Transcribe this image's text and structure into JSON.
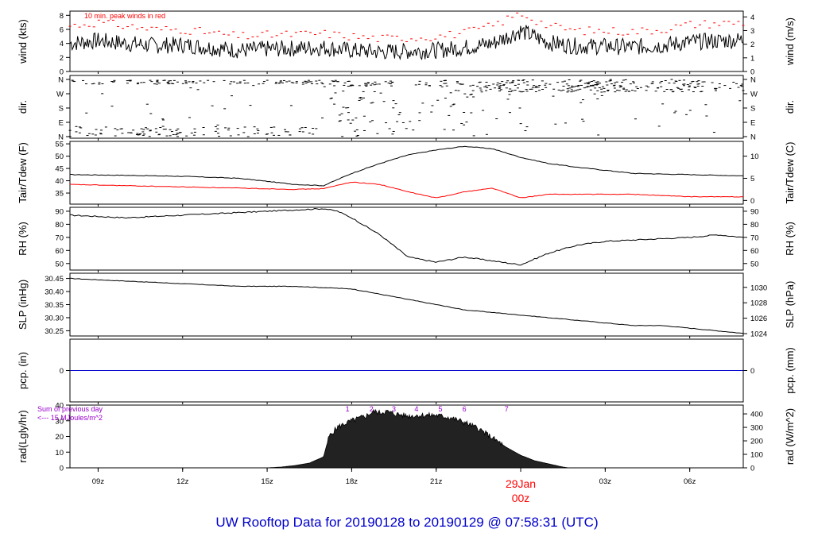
{
  "footer": "UW Rooftop Data for 20190128  to  20190129 @ 07:58:31  (UTC)",
  "colors": {
    "line": "#000000",
    "peak": "#ff0000",
    "dew": "#ff0000",
    "precip": "#0000cc",
    "annot": "#9900cc",
    "footer": "#0000cc",
    "date": "#ff0000"
  },
  "chart_data": [
    {
      "id": "wind",
      "type": "line",
      "ylabel_left": "wind (kts)",
      "ylabel_right": "wind (m/s)",
      "ylim": [
        0,
        8.6
      ],
      "yticks_left": [
        0,
        2,
        4,
        6,
        8
      ],
      "yticks_right": [
        {
          "label": "0",
          "value": 0
        },
        {
          "label": "1",
          "value": 1.944
        },
        {
          "label": "2",
          "value": 3.888
        },
        {
          "label": "3",
          "value": 5.832
        },
        {
          "label": "4",
          "value": 7.776
        }
      ],
      "annotation": "10 min. peak winds in red",
      "x": [
        8,
        9,
        10,
        11,
        12,
        13,
        14,
        15,
        16,
        17,
        18,
        19,
        20,
        21,
        22,
        23,
        24,
        25,
        26,
        27,
        28,
        29,
        30,
        31.9
      ],
      "series": [
        {
          "values": [
            4.0,
            4.4,
            4.0,
            3.7,
            3.8,
            3.4,
            3.0,
            3.2,
            3.3,
            3.4,
            3.0,
            2.8,
            2.9,
            3.0,
            3.4,
            4.0,
            5.8,
            4.1,
            3.6,
            3.6,
            3.5,
            3.7,
            4.2,
            4.5
          ]
        },
        {
          "values": [
            6.5,
            7.0,
            6.5,
            6.0,
            6.0,
            5.5,
            5.0,
            5.2,
            5.3,
            5.4,
            5.0,
            4.7,
            4.8,
            5.0,
            5.5,
            6.5,
            8.3,
            6.5,
            5.8,
            5.8,
            5.7,
            6.0,
            6.7,
            7.0
          ]
        }
      ]
    },
    {
      "id": "dir",
      "type": "scatter",
      "ylabel_left": "dir.",
      "ylabel_right": "dir.",
      "yticks": [
        "N",
        "W",
        "S",
        "E",
        "N"
      ]
    },
    {
      "id": "temp",
      "type": "line",
      "ylabel_left": "Tair/Tdew (F)",
      "ylabel_right": "Tair/Tdew (C)",
      "ylim": [
        30.5,
        56
      ],
      "yticks_left": [
        35,
        40,
        45,
        50,
        55
      ],
      "yticks_right": [
        {
          "label": "0",
          "value": 32
        },
        {
          "label": "5",
          "value": 41
        },
        {
          "label": "10",
          "value": 50
        }
      ],
      "x": [
        8,
        10,
        12,
        14,
        16,
        17,
        18,
        19,
        20,
        21,
        22,
        23,
        24,
        25,
        26,
        28,
        30,
        31.9
      ],
      "series": [
        {
          "values": [
            42.5,
            42.2,
            41.8,
            41.0,
            38.5,
            38.0,
            43.0,
            47.0,
            50.5,
            52.5,
            54.0,
            53.0,
            49.5,
            47.0,
            45.5,
            43.0,
            42.5,
            42.0
          ]
        },
        {
          "values": [
            38.5,
            38.0,
            37.5,
            37.0,
            36.5,
            36.8,
            39.5,
            38.5,
            35.5,
            33.0,
            35.5,
            37.0,
            33.0,
            34.5,
            34.5,
            34.5,
            33.5,
            33.5
          ]
        }
      ]
    },
    {
      "id": "rh",
      "type": "line",
      "ylabel_left": "RH (%)",
      "ylabel_right": "RH (%)",
      "ylim": [
        45,
        93
      ],
      "yticks_left": [
        50,
        60,
        70,
        80,
        90
      ],
      "yticks_right": [
        50,
        60,
        70,
        80,
        90
      ],
      "x": [
        8,
        10,
        12,
        14,
        16,
        17,
        17.5,
        18,
        19,
        20,
        21,
        22,
        23,
        24,
        25,
        26,
        27,
        28,
        29,
        30,
        31,
        31.9
      ],
      "series": [
        {
          "values": [
            87,
            85,
            87,
            89,
            91,
            92,
            90,
            85,
            72,
            55,
            51,
            55,
            52,
            49,
            58,
            64,
            67,
            68,
            69,
            70,
            72,
            70
          ]
        }
      ]
    },
    {
      "id": "slp",
      "type": "line",
      "ylabel_left": "SLP (inHg)",
      "ylabel_right": "SLP (hPa)",
      "ylim": [
        30.23,
        30.47
      ],
      "yticks_left": [
        "30.25",
        "30.30",
        "30.35",
        "30.40",
        "30.45"
      ],
      "yticks_right": [
        {
          "label": "1024",
          "value": 30.239
        },
        {
          "label": "1026",
          "value": 30.298
        },
        {
          "label": "1028",
          "value": 30.357
        },
        {
          "label": "1030",
          "value": 30.416
        }
      ],
      "x": [
        8,
        10,
        12,
        14,
        16,
        18,
        19,
        20,
        21,
        22,
        23,
        24,
        25,
        26,
        27,
        28,
        29,
        30,
        31.9
      ],
      "series": [
        {
          "values": [
            30.45,
            30.44,
            30.43,
            30.42,
            30.42,
            30.41,
            30.39,
            30.37,
            30.35,
            30.33,
            30.32,
            30.31,
            30.3,
            30.29,
            30.28,
            30.27,
            30.27,
            30.26,
            30.24
          ]
        }
      ]
    },
    {
      "id": "pcp",
      "type": "line",
      "ylabel_left": "pcp. (in)",
      "ylabel_right": "pcp. (mm)",
      "ylim": [
        -0.5,
        0.5
      ],
      "yticks_left": [
        0
      ],
      "yticks_right": [
        {
          "label": "0",
          "value": 0
        }
      ],
      "x": [
        8,
        31.9
      ],
      "series": [
        {
          "values": [
            0,
            0
          ]
        }
      ]
    },
    {
      "id": "rad",
      "type": "area",
      "ylabel_left": "rad(Lgly/hr)",
      "ylabel_right": "rad (W/m^2)",
      "ylim": [
        0,
        40
      ],
      "yticks_left": [
        0,
        10,
        20,
        30,
        40
      ],
      "yticks_right": [
        {
          "label": "0",
          "value": 0
        },
        {
          "label": "100",
          "value": 8.6
        },
        {
          "label": "200",
          "value": 17.2
        },
        {
          "label": "300",
          "value": 25.8
        },
        {
          "label": "400",
          "value": 34.4
        }
      ],
      "annotation_lines": [
        "Sum of previous day",
        "<--- 15 MJoules/m^2"
      ],
      "marks": [
        {
          "label": "1",
          "x": 17.85
        },
        {
          "label": "2",
          "x": 18.7
        },
        {
          "label": "3",
          "x": 19.5
        },
        {
          "label": "4",
          "x": 20.3
        },
        {
          "label": "5",
          "x": 21.15
        },
        {
          "label": "6",
          "x": 22.0
        },
        {
          "label": "7",
          "x": 23.5
        }
      ],
      "x": [
        15.0,
        15.5,
        16.0,
        16.5,
        17.0,
        17.2,
        17.5,
        18.0,
        18.5,
        18.8,
        19.0,
        19.2,
        19.5,
        20.0,
        20.5,
        21.0,
        21.5,
        22.0,
        22.5,
        23.0,
        23.5,
        24.0,
        24.5,
        25.0,
        25.5,
        25.7
      ],
      "values": [
        0,
        0.5,
        1.5,
        3.0,
        7.0,
        20.0,
        26.0,
        30.0,
        33.0,
        36.0,
        35.0,
        36.0,
        34.5,
        33.0,
        33.5,
        33.5,
        32.0,
        29.0,
        25.0,
        19.0,
        13.0,
        8.0,
        4.5,
        2.5,
        0.5,
        0
      ]
    }
  ],
  "xaxis": {
    "range": [
      8,
      31.9
    ],
    "ticks": [
      {
        "label": "09z",
        "value": 9
      },
      {
        "label": "12z",
        "value": 12
      },
      {
        "label": "15z",
        "value": 15
      },
      {
        "label": "18z",
        "value": 18
      },
      {
        "label": "21z",
        "value": 21
      },
      {
        "label": "03z",
        "value": 27
      },
      {
        "label": "06z",
        "value": 30
      }
    ],
    "date": {
      "day": "29Jan",
      "hour": "00z",
      "value": 24
    }
  }
}
